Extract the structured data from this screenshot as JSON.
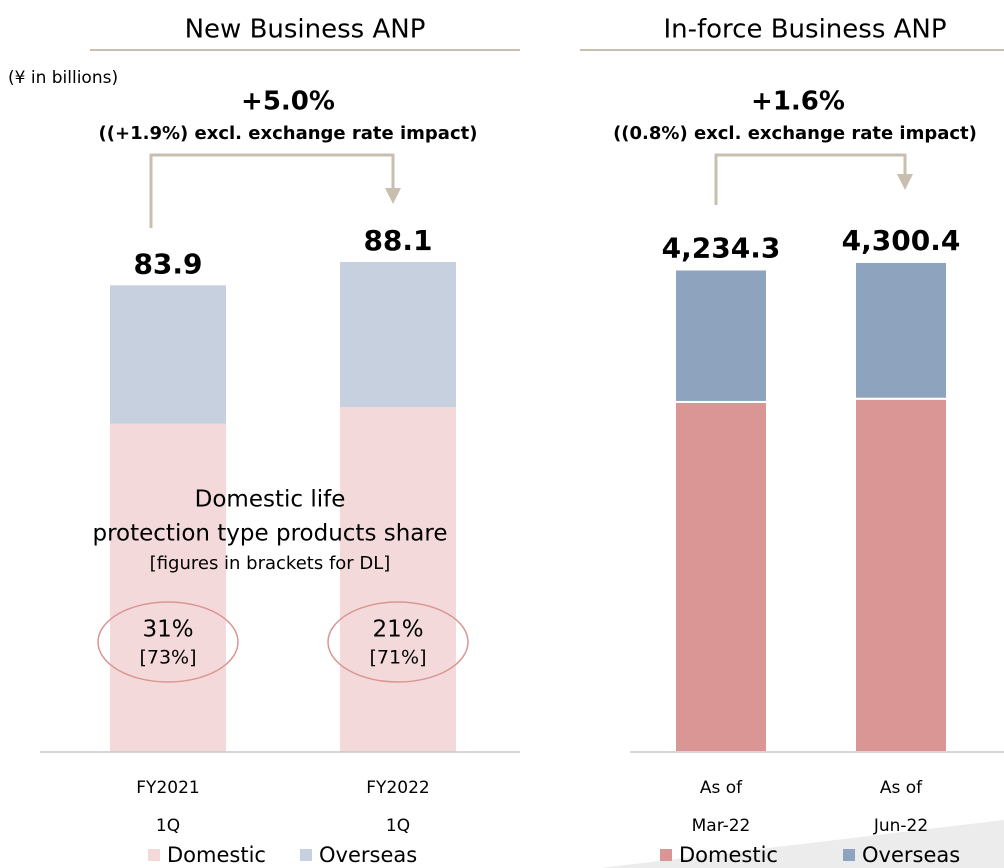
{
  "chart_data": [
    {
      "type": "bar",
      "stacked": true,
      "title": "New Business ANP",
      "unit": "(¥ in billions)",
      "annotation": "+5.0%",
      "sub_annotation": "((+1.9%) excl. exchange rate impact)",
      "categories": [
        "FY2021 1Q",
        "FY2022 1Q"
      ],
      "series": [
        {
          "name": "Domestic",
          "color": "#f4d9da",
          "values": [
            59.0,
            62.0
          ]
        },
        {
          "name": "Overseas",
          "color": "#c7d0df",
          "values": [
            24.9,
            26.1
          ]
        }
      ],
      "totals": [
        83.9,
        88.1
      ],
      "share_title": [
        "Domestic life",
        "protection type products share",
        "[figures in brackets for DL]"
      ],
      "share": {
        "values": [
          31,
          21
        ],
        "value_labels": [
          "31%",
          "21%"
        ]
      },
      "dl_share": {
        "values": [
          73,
          71
        ],
        "value_labels": [
          "[73%]",
          "[71%]"
        ]
      }
    },
    {
      "type": "bar",
      "stacked": true,
      "title": "In-force Business ANP",
      "annotation": "+1.6%",
      "sub_annotation": "((0.8%) excl. exchange rate impact)",
      "categories": [
        "As of Mar-22",
        "As of Jun-22"
      ],
      "series": [
        {
          "name": "Domestic",
          "color": "#d99694",
          "values": [
            3072,
            3100
          ]
        },
        {
          "name": "Overseas",
          "color": "#8ea3be",
          "values": [
            1162.3,
            1200.4
          ]
        }
      ],
      "totals": [
        {
          "value": 4234.3,
          "label": "4,234.3"
        },
        {
          "value": 4300.4,
          "label": "4,300.4"
        }
      ]
    }
  ]
}
